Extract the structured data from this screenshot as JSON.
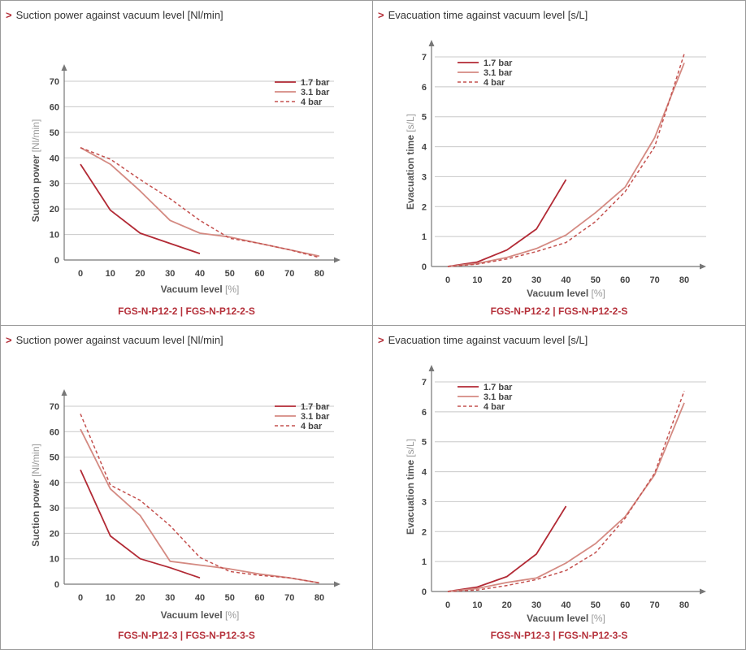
{
  "colors": {
    "s17": "#b22a35",
    "s31": "#d48a82",
    "s4": "#c4504e",
    "grid": "#c8c8c8",
    "axis": "#777777",
    "accent": "#b5303a"
  },
  "panels": [
    {
      "title": "Suction power against vacuum level [Nl/min]",
      "model": "FGS-N-P12-2 | FGS-N-P12-2-S",
      "chart_data": {
        "type": "line",
        "title": "Suction power against vacuum level [Nl/min]",
        "xlabel": "Vacuum level",
        "xunit": "[%]",
        "ylabel": "Suction power",
        "yunit": "[Nl/min]",
        "x_ticks": [
          0,
          10,
          20,
          30,
          40,
          50,
          60,
          70,
          80
        ],
        "y_ticks": [
          0,
          10,
          20,
          30,
          40,
          50,
          60,
          70
        ],
        "ylim": [
          0,
          70
        ],
        "xlim": [
          0,
          80
        ],
        "series": [
          {
            "name": "1.7 bar",
            "style": "solid-dark",
            "x": [
              0,
              10,
              20,
              30,
              40
            ],
            "y": [
              37.5,
              19.5,
              10.5,
              6.5,
              2.5
            ]
          },
          {
            "name": "3.1 bar",
            "style": "solid-light",
            "x": [
              0,
              10,
              20,
              30,
              40,
              50,
              60,
              70,
              80
            ],
            "y": [
              44,
              37.5,
              27,
              15.5,
              10.5,
              9,
              6.5,
              4,
              1.5
            ]
          },
          {
            "name": "4 bar",
            "style": "dashed",
            "x": [
              0,
              10,
              20,
              30,
              40,
              50,
              60,
              70,
              80
            ],
            "y": [
              44,
              39.5,
              31.5,
              24,
              15.5,
              8.5,
              6.5,
              4,
              1
            ]
          }
        ]
      }
    },
    {
      "title": "Evacuation time against vacuum level [s/L]",
      "model": "FGS-N-P12-2 | FGS-N-P12-2-S",
      "chart_data": {
        "type": "line",
        "title": "Evacuation time against vacuum level [s/L]",
        "xlabel": "Vacuum level",
        "xunit": "[%]",
        "ylabel": "Evacuation time",
        "yunit": "[s/L]",
        "x_ticks": [
          0,
          10,
          20,
          30,
          40,
          50,
          60,
          70,
          80
        ],
        "y_ticks": [
          0,
          1,
          2,
          3,
          4,
          5,
          6,
          7
        ],
        "ylim": [
          0,
          7
        ],
        "xlim": [
          0,
          80
        ],
        "series": [
          {
            "name": "1.7 bar",
            "style": "solid-dark",
            "x": [
              0,
              10,
              20,
              30,
              40
            ],
            "y": [
              0,
              0.15,
              0.55,
              1.25,
              2.9
            ]
          },
          {
            "name": "3.1 bar",
            "style": "solid-light",
            "x": [
              0,
              10,
              20,
              30,
              40,
              50,
              60,
              70,
              80
            ],
            "y": [
              0,
              0.1,
              0.3,
              0.6,
              1.05,
              1.8,
              2.65,
              4.3,
              6.8
            ]
          },
          {
            "name": "4 bar",
            "style": "dashed",
            "x": [
              0,
              10,
              20,
              30,
              40,
              50,
              60,
              70,
              80
            ],
            "y": [
              0,
              0.08,
              0.25,
              0.5,
              0.8,
              1.5,
              2.5,
              4.0,
              7.1
            ]
          }
        ]
      }
    },
    {
      "title": "Suction power against vacuum level [Nl/min]",
      "model": "FGS-N-P12-3 | FGS-N-P12-3-S",
      "chart_data": {
        "type": "line",
        "title": "Suction power against vacuum level [Nl/min]",
        "xlabel": "Vacuum level",
        "xunit": "[%]",
        "ylabel": "Suction power",
        "yunit": "[Nl/min]",
        "x_ticks": [
          0,
          10,
          20,
          30,
          40,
          50,
          60,
          70,
          80
        ],
        "y_ticks": [
          0,
          10,
          20,
          30,
          40,
          50,
          60,
          70
        ],
        "ylim": [
          0,
          70
        ],
        "xlim": [
          0,
          80
        ],
        "series": [
          {
            "name": "1.7 bar",
            "style": "solid-dark",
            "x": [
              0,
              10,
              20,
              30,
              40
            ],
            "y": [
              45,
              19,
              10,
              6.5,
              2.5
            ]
          },
          {
            "name": "3.1 bar",
            "style": "solid-light",
            "x": [
              0,
              10,
              20,
              30,
              40,
              50,
              60,
              70,
              80
            ],
            "y": [
              61,
              37.5,
              27,
              9,
              7.5,
              6,
              4,
              2.5,
              0.5
            ]
          },
          {
            "name": "4 bar",
            "style": "dashed",
            "x": [
              0,
              10,
              20,
              30,
              40,
              50,
              60,
              70,
              80
            ],
            "y": [
              67,
              39,
              33,
              23,
              10.5,
              5,
              3.5,
              2.5,
              0.5
            ]
          }
        ]
      }
    },
    {
      "title": "Evacuation time against vacuum level [s/L]",
      "model": "FGS-N-P12-3 | FGS-N-P12-3-S",
      "chart_data": {
        "type": "line",
        "title": "Evacuation time against vacuum level [s/L]",
        "xlabel": "Vacuum level",
        "xunit": "[%]",
        "ylabel": "Evacuation time",
        "yunit": "[s/L]",
        "x_ticks": [
          0,
          10,
          20,
          30,
          40,
          50,
          60,
          70,
          80
        ],
        "y_ticks": [
          0,
          1,
          2,
          3,
          4,
          5,
          6,
          7
        ],
        "ylim": [
          0,
          7
        ],
        "xlim": [
          0,
          80
        ],
        "series": [
          {
            "name": "1.7 bar",
            "style": "solid-dark",
            "x": [
              0,
              10,
              20,
              30,
              40
            ],
            "y": [
              0,
              0.15,
              0.5,
              1.25,
              2.85
            ]
          },
          {
            "name": "3.1 bar",
            "style": "solid-light",
            "x": [
              0,
              10,
              20,
              30,
              40,
              50,
              60,
              70,
              80
            ],
            "y": [
              0,
              0.1,
              0.3,
              0.45,
              0.95,
              1.6,
              2.5,
              3.9,
              6.3
            ]
          },
          {
            "name": "4 bar",
            "style": "dashed",
            "x": [
              0,
              10,
              20,
              30,
              40,
              50,
              60,
              70,
              80
            ],
            "y": [
              0,
              0.05,
              0.2,
              0.4,
              0.7,
              1.3,
              2.45,
              3.95,
              6.7
            ]
          }
        ]
      }
    }
  ]
}
